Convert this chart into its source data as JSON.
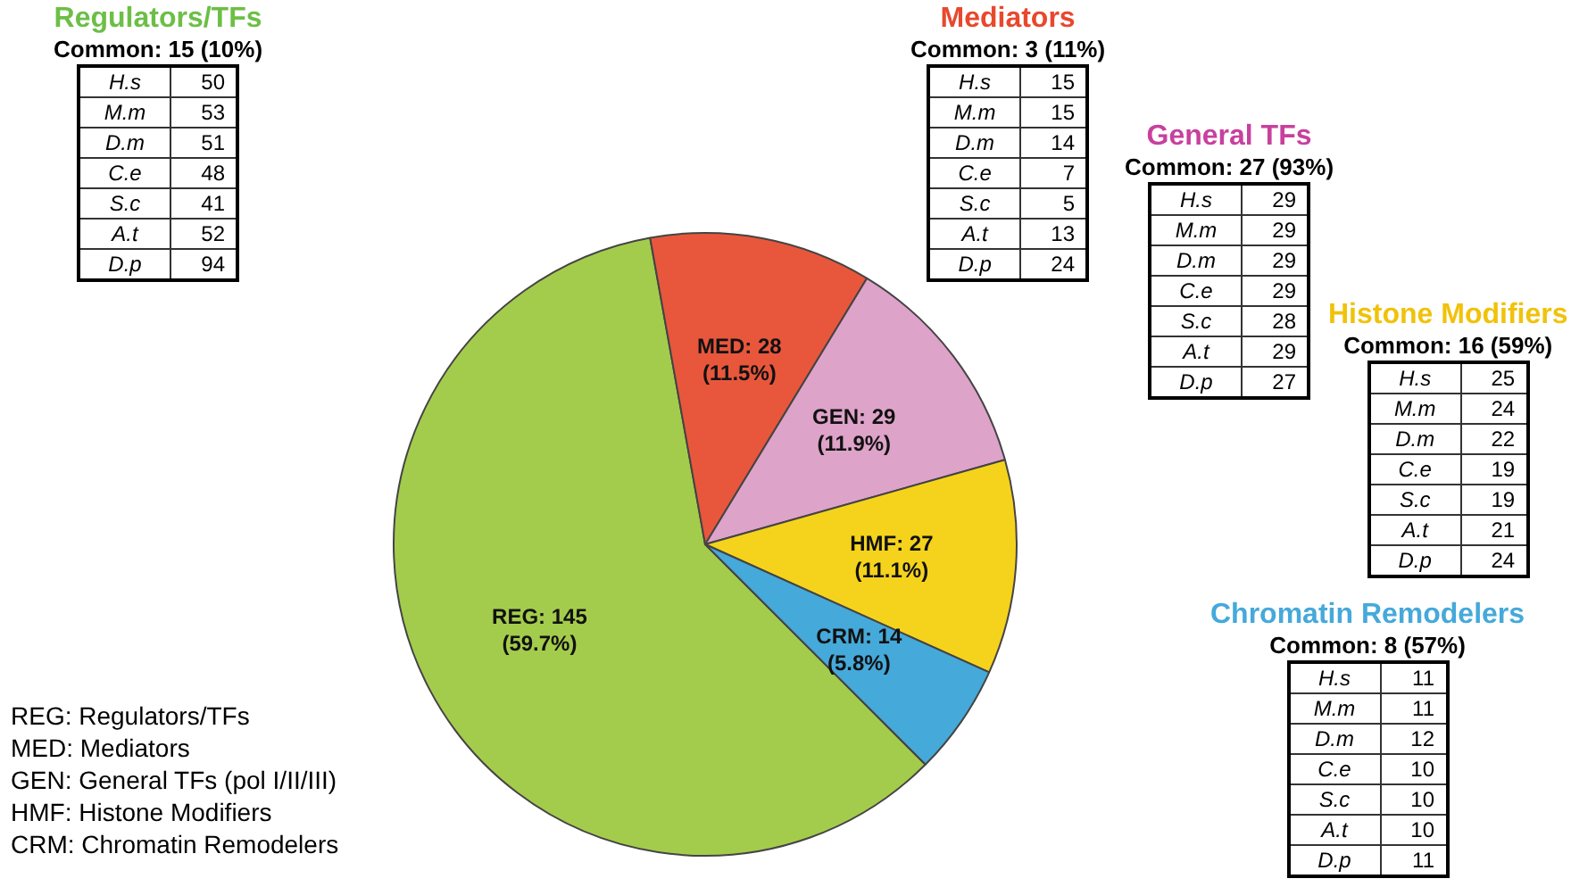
{
  "chart_data": [
    {
      "type": "pie",
      "categories": [
        "REG",
        "MED",
        "GEN",
        "HMF",
        "CRM"
      ],
      "values": [
        145,
        28,
        29,
        27,
        14
      ],
      "colors": [
        "#a4cc4c",
        "#e8573c",
        "#dea3c9",
        "#f5d31c",
        "#45a9da"
      ],
      "value_labels": [
        "145\n(59.7%)",
        "28\n(11.5%)",
        "29\n(11.9%)",
        "27\n(11.1%)",
        "14\n(5.8%)"
      ],
      "annotations": [
        "REG: Regulators/TFs",
        "MED: Mediators",
        "GEN: General TFs (pol I/II/III)",
        "HMF: Histone Modifiers",
        "CRM: Chromatin Remodelers"
      ]
    },
    {
      "type": "other",
      "title": "Regulators/TFs",
      "subtitle": "Common: 15  (10%)",
      "color": "#6cbf46",
      "data_labels": true,
      "categories": [
        "H.s",
        "M.m",
        "D.m",
        "C.e",
        "S.c",
        "A.t",
        "D.p"
      ],
      "values": [
        50,
        53,
        51,
        48,
        41,
        52,
        94
      ]
    },
    {
      "type": "other",
      "title": "Mediators",
      "subtitle": "Common: 3  (11%)",
      "color": "#e8482e",
      "data_labels": true,
      "categories": [
        "H.s",
        "M.m",
        "D.m",
        "C.e",
        "S.c",
        "A.t",
        "D.p"
      ],
      "values": [
        15,
        15,
        14,
        7,
        5,
        13,
        24
      ]
    },
    {
      "type": "other",
      "title": "General TFs",
      "subtitle": "Common: 27 (93%)",
      "color": "#c8409e",
      "data_labels": true,
      "categories": [
        "H.s",
        "M.m",
        "D.m",
        "C.e",
        "S.c",
        "A.t",
        "D.p"
      ],
      "values": [
        29,
        29,
        29,
        29,
        28,
        29,
        27
      ]
    },
    {
      "type": "other",
      "title": "Histone Modifiers",
      "subtitle": "Common: 16 (59%)",
      "color": "#f0c20a",
      "data_labels": true,
      "categories": [
        "H.s",
        "M.m",
        "D.m",
        "C.e",
        "S.c",
        "A.t",
        "D.p"
      ],
      "values": [
        25,
        24,
        22,
        19,
        19,
        21,
        24
      ]
    },
    {
      "type": "other",
      "title": "Chromatin Remodelers",
      "subtitle": "Common: 8  (57%)",
      "color": "#45a9da",
      "data_labels": true,
      "categories": [
        "H.s",
        "M.m",
        "D.m",
        "C.e",
        "S.c",
        "A.t",
        "D.p"
      ],
      "values": [
        11,
        11,
        12,
        10,
        10,
        10,
        11
      ]
    }
  ]
}
